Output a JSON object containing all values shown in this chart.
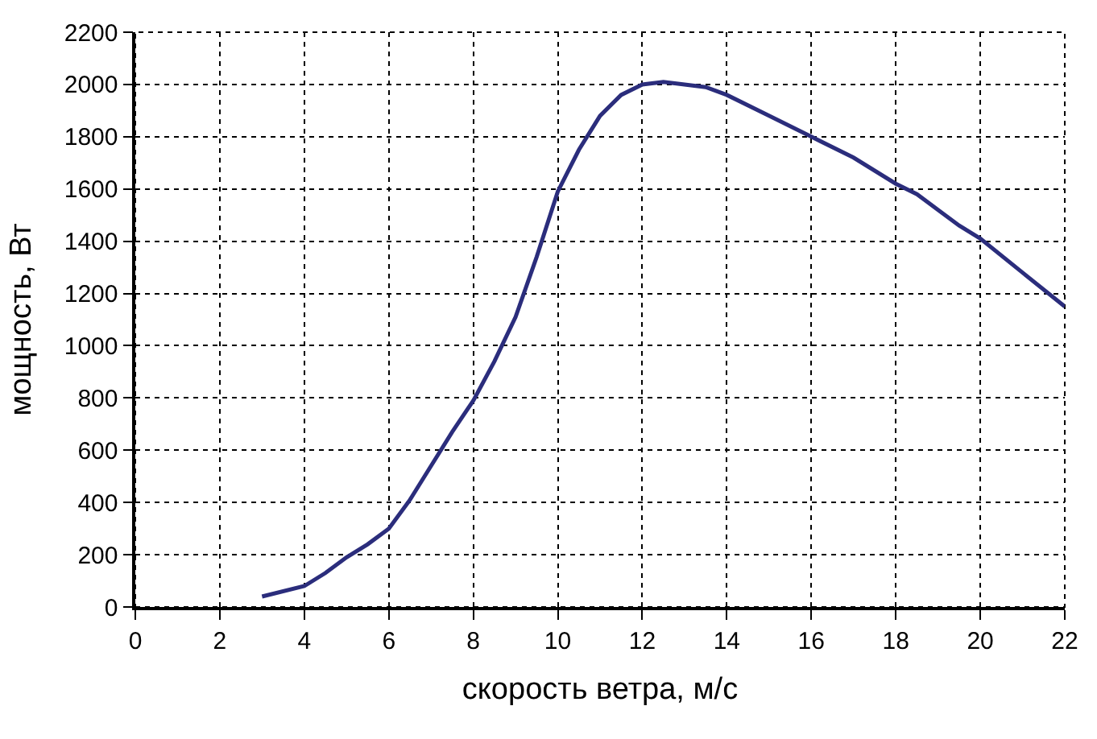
{
  "chart_data": {
    "type": "line",
    "xlabel": "скорость ветра, м/с",
    "ylabel": "мощность, Вт",
    "x": [
      3,
      4,
      4.5,
      5,
      5.5,
      6,
      6.5,
      7,
      7.5,
      8,
      8.5,
      9,
      9.5,
      10,
      10.5,
      11,
      11.5,
      12,
      12.5,
      13.5,
      14,
      15,
      16,
      17,
      18,
      18.5,
      19,
      19.5,
      20,
      21,
      22
    ],
    "series": [
      {
        "color": "#2b2d7c",
        "values": [
          40,
          80,
          130,
          190,
          240,
          300,
          410,
          540,
          670,
          790,
          940,
          1110,
          1340,
          1590,
          1750,
          1880,
          1960,
          2000,
          2010,
          1990,
          1960,
          1880,
          1800,
          1720,
          1620,
          1580,
          1520,
          1460,
          1410,
          1280,
          1150
        ]
      }
    ],
    "xlim": [
      0,
      22
    ],
    "xticks": [
      0,
      2,
      4,
      6,
      8,
      10,
      12,
      14,
      16,
      18,
      20,
      22
    ],
    "ylim": [
      0,
      2200
    ],
    "yticks": [
      0,
      200,
      400,
      600,
      800,
      1000,
      1200,
      1400,
      1600,
      1800,
      2000,
      2200
    ],
    "grid": true,
    "line_style": "solid"
  }
}
